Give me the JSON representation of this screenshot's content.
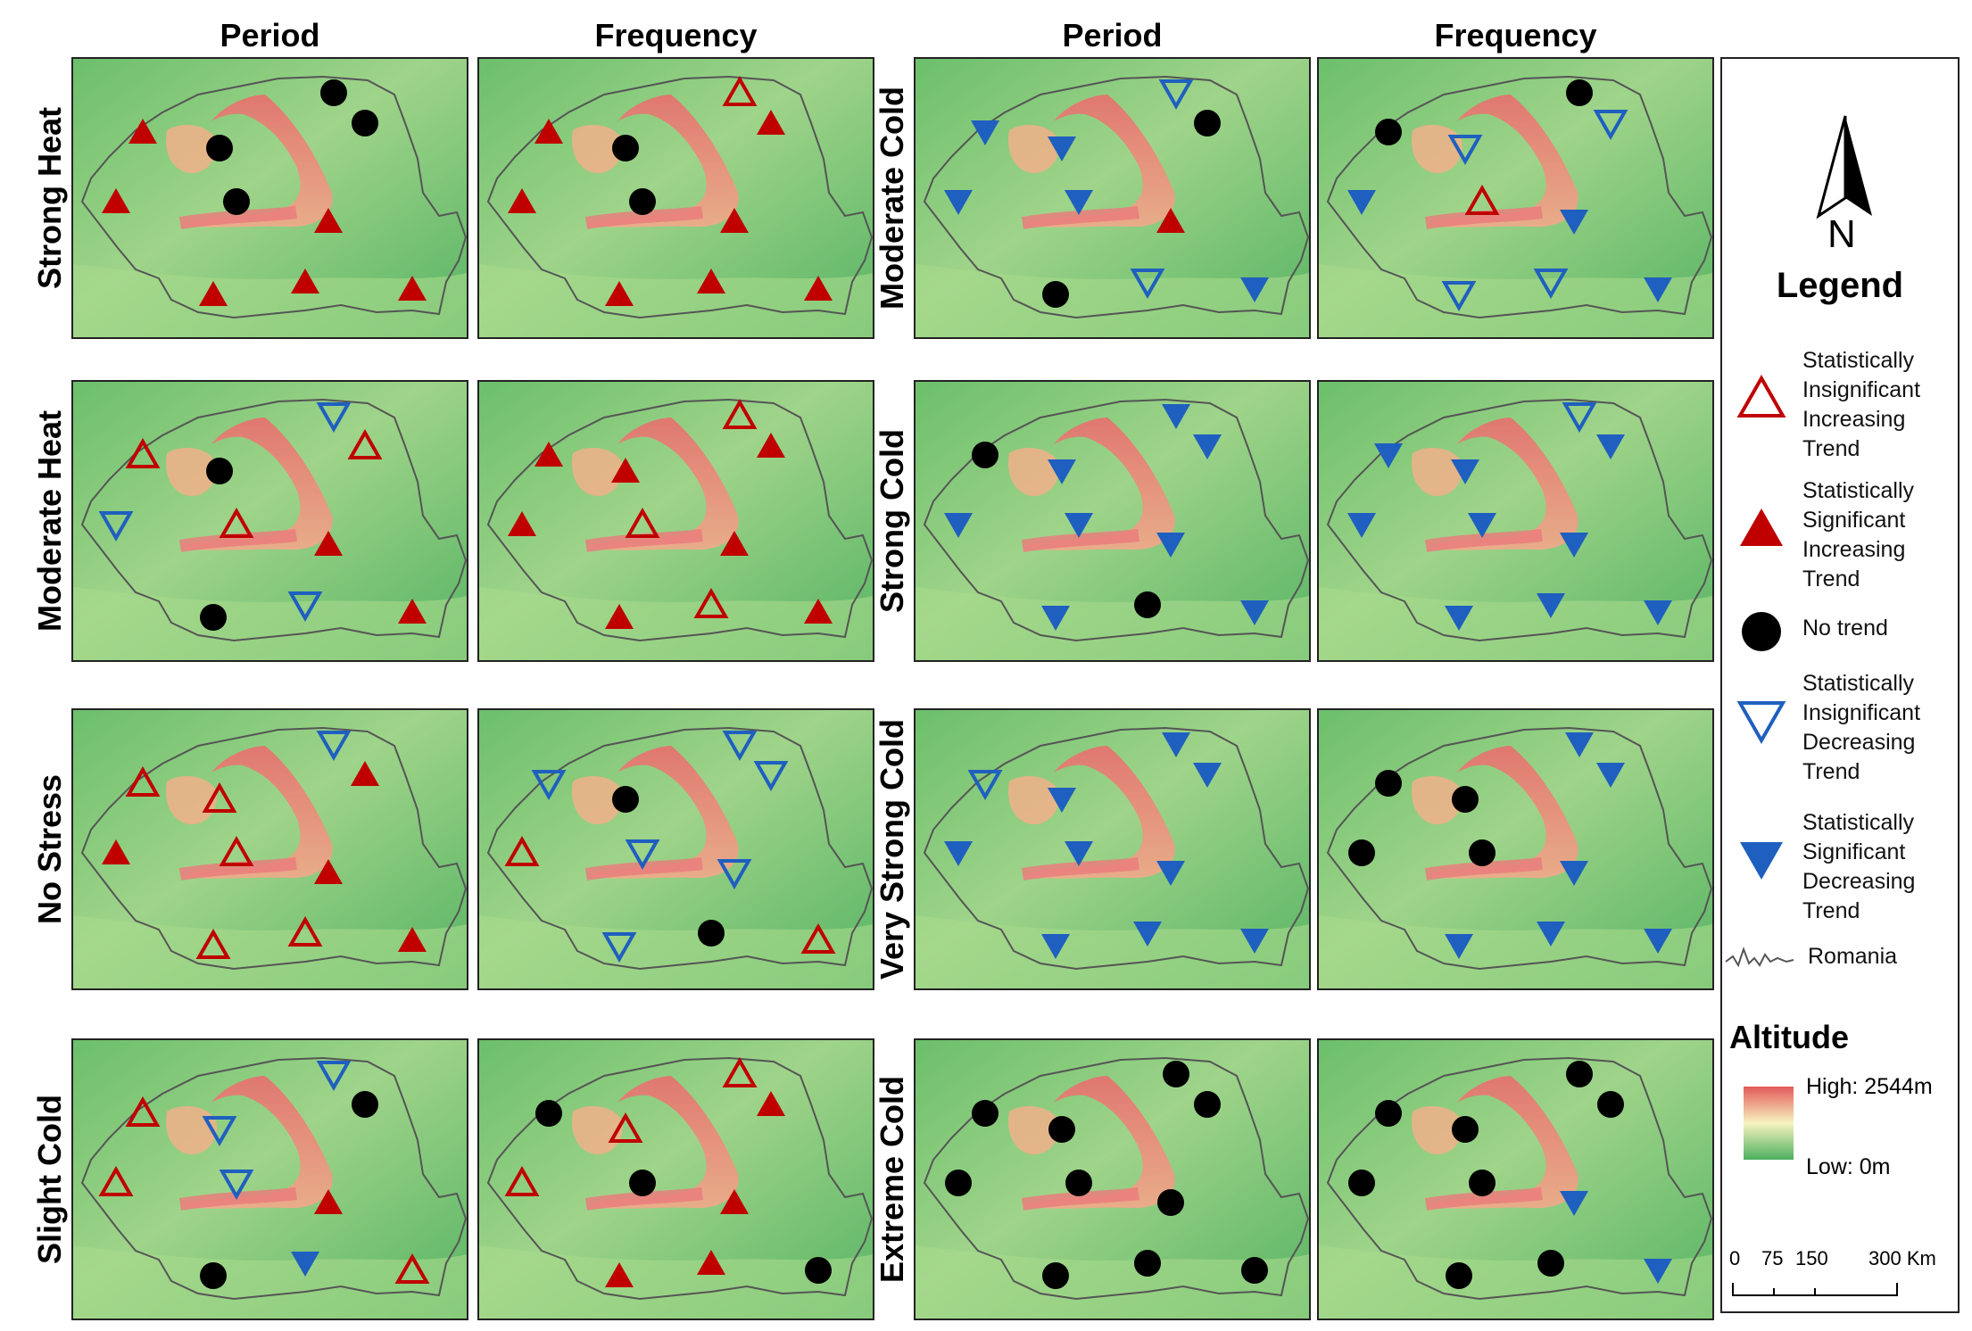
{
  "columns": [
    "Period",
    "Frequency",
    "Period",
    "Frequency"
  ],
  "rows_left": [
    "Strong Heat",
    "Moderate Heat",
    "No Stress",
    "Slight Cold"
  ],
  "rows_right": [
    "Moderate Cold",
    "Strong Cold",
    "Very Strong Cold",
    "Extreme Cold"
  ],
  "colors": {
    "increasing": "#c00000",
    "decreasing": "#1f5fbf",
    "notrend": "#000000",
    "map_low": "#5fb86a",
    "map_high": "#e87070"
  },
  "legend": {
    "north": "N",
    "title": "Legend",
    "items": [
      {
        "symbol": "ins-inc",
        "label": "Statistically Insignificant Increasing Trend"
      },
      {
        "symbol": "sig-inc",
        "label": "Statistically Significant Increasing Trend"
      },
      {
        "symbol": "none",
        "label": "No trend"
      },
      {
        "symbol": "ins-dec",
        "label": "Statistically Insignificant Decreasing Trend"
      },
      {
        "symbol": "sig-dec",
        "label": "Statistically Significant Decreasing Trend"
      },
      {
        "symbol": "border",
        "label": "Romania"
      }
    ],
    "altitude_title": "Altitude",
    "altitude_high": "High: 2544m",
    "altitude_low": "Low: 0m",
    "scale_labels": [
      "0",
      "75",
      "150",
      "300 Km"
    ]
  },
  "panels": [
    {
      "name": "strong-heat-period",
      "stations": [
        "none",
        "none",
        "sig-inc",
        "none",
        "sig-inc",
        "none",
        "sig-inc",
        "sig-inc",
        "sig-inc",
        "sig-inc"
      ]
    },
    {
      "name": "strong-heat-frequency",
      "stations": [
        "ins-inc",
        "sig-inc",
        "sig-inc",
        "none",
        "sig-inc",
        "none",
        "sig-inc",
        "sig-inc",
        "sig-inc",
        "sig-inc"
      ]
    },
    {
      "name": "moderate-cold-period",
      "stations": [
        "ins-dec",
        "none",
        "sig-dec",
        "sig-dec",
        "sig-dec",
        "sig-dec",
        "sig-inc",
        "none",
        "ins-dec",
        "sig-dec"
      ]
    },
    {
      "name": "moderate-cold-frequency",
      "stations": [
        "none",
        "ins-dec",
        "none",
        "ins-dec",
        "sig-dec",
        "ins-inc",
        "sig-dec",
        "ins-dec",
        "ins-dec",
        "sig-dec"
      ]
    },
    {
      "name": "moderate-heat-period",
      "stations": [
        "ins-dec",
        "ins-inc",
        "ins-inc",
        "none",
        "ins-dec",
        "ins-inc",
        "sig-inc",
        "none",
        "ins-dec",
        "sig-inc"
      ]
    },
    {
      "name": "moderate-heat-frequency",
      "stations": [
        "ins-inc",
        "sig-inc",
        "sig-inc",
        "sig-inc",
        "sig-inc",
        "ins-inc",
        "sig-inc",
        "sig-inc",
        "ins-inc",
        "sig-inc"
      ]
    },
    {
      "name": "strong-cold-period",
      "stations": [
        "sig-dec",
        "sig-dec",
        "none",
        "sig-dec",
        "sig-dec",
        "sig-dec",
        "sig-dec",
        "sig-dec",
        "none",
        "sig-dec"
      ]
    },
    {
      "name": "strong-cold-frequency",
      "stations": [
        "ins-dec",
        "sig-dec",
        "sig-dec",
        "sig-dec",
        "sig-dec",
        "sig-dec",
        "sig-dec",
        "sig-dec",
        "sig-dec",
        "sig-dec"
      ]
    },
    {
      "name": "no-stress-period",
      "stations": [
        "ins-dec",
        "sig-inc",
        "ins-inc",
        "ins-inc",
        "sig-inc",
        "ins-inc",
        "sig-inc",
        "ins-inc",
        "ins-inc",
        "sig-inc"
      ]
    },
    {
      "name": "no-stress-frequency",
      "stations": [
        "ins-dec",
        "ins-dec",
        "ins-dec",
        "none",
        "ins-inc",
        "ins-dec",
        "ins-dec",
        "ins-dec",
        "none",
        "ins-inc"
      ]
    },
    {
      "name": "very-strong-cold-period",
      "stations": [
        "sig-dec",
        "sig-dec",
        "ins-dec",
        "sig-dec",
        "sig-dec",
        "sig-dec",
        "sig-dec",
        "sig-dec",
        "sig-dec",
        "sig-dec"
      ]
    },
    {
      "name": "very-strong-cold-frequency",
      "stations": [
        "sig-dec",
        "sig-dec",
        "none",
        "none",
        "none",
        "none",
        "sig-dec",
        "sig-dec",
        "sig-dec",
        "sig-dec"
      ]
    },
    {
      "name": "slight-cold-period",
      "stations": [
        "ins-dec",
        "none",
        "ins-inc",
        "ins-dec",
        "ins-inc",
        "ins-dec",
        "sig-inc",
        "none",
        "sig-dec",
        "ins-inc"
      ]
    },
    {
      "name": "slight-cold-frequency",
      "stations": [
        "ins-inc",
        "sig-inc",
        "none",
        "ins-inc",
        "ins-inc",
        "none",
        "sig-inc",
        "sig-inc",
        "sig-inc",
        "none"
      ]
    },
    {
      "name": "extreme-cold-period",
      "stations": [
        "none",
        "none",
        "none",
        "none",
        "none",
        "none",
        "none",
        "none",
        "none",
        "none"
      ]
    },
    {
      "name": "extreme-cold-frequency",
      "stations": [
        "none",
        "none",
        "none",
        "none",
        "none",
        "none",
        "sig-dec",
        "none",
        "none",
        "sig-dec"
      ]
    }
  ]
}
